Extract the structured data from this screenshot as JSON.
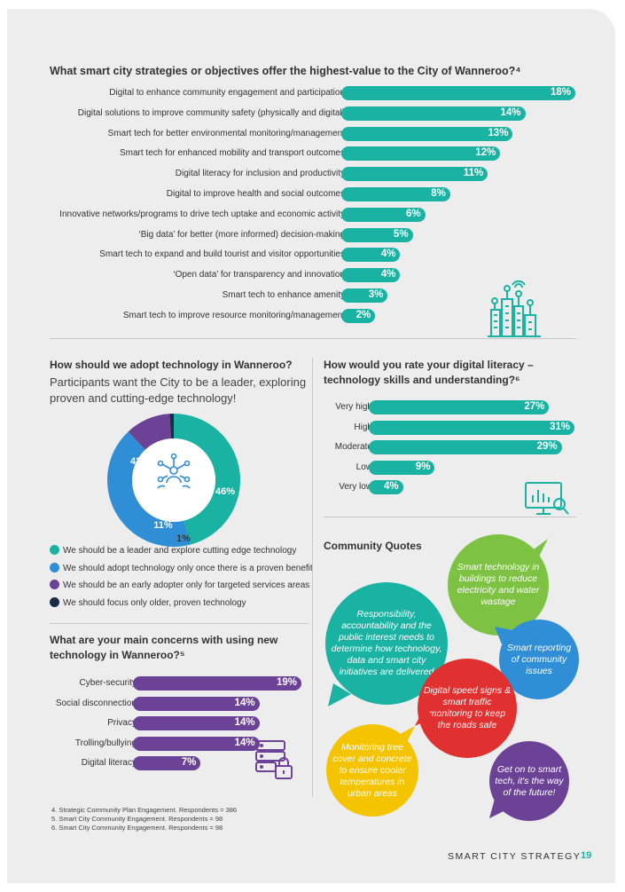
{
  "strategies": {
    "title": "What smart city strategies or objectives offer the highest-value to the City of Wanneroo?⁴",
    "chart_data": {
      "type": "bar",
      "categories": [
        "Digital to enhance community engagement and participation",
        "Digital solutions to improve community safety (physically and digital)",
        "Smart tech for better environmental monitoring/management",
        "Smart tech for enhanced mobility and transport outcomes",
        "Digital literacy for inclusion and productivity",
        "Digital to improve health and social outcomes",
        "Innovative networks/programs to drive tech uptake and economic activity",
        "‘Big data’ for better (more informed) decision-making",
        "Smart tech to expand and build tourist and visitor opportunities",
        "‘Open data’ for transparency and innovation",
        "Smart tech to enhance amenity",
        "Smart tech to improve resource monitoring/management"
      ],
      "values": [
        18,
        14,
        13,
        12,
        11,
        8,
        6,
        5,
        4,
        4,
        3,
        2
      ],
      "value_labels": [
        "18%",
        "14%",
        "13%",
        "12%",
        "11%",
        "8%",
        "6%",
        "5%",
        "4%",
        "4%",
        "3%",
        "2%"
      ],
      "xlim": [
        0,
        18
      ],
      "color": "#1ab3a3"
    }
  },
  "adopt": {
    "title": "How should we adopt technology in Wanneroo?",
    "lead": "Participants want the City to be a leader, exploring proven and cutting-edge technology!",
    "chart_data": {
      "type": "pie",
      "labels": [
        "We should be a leader and explore cutting edge technology",
        "We should adopt technology only once there is a proven benefit",
        "We should be an early adopter only for targeted services areas",
        "We should focus only older, proven technology"
      ],
      "values": [
        46,
        42,
        11,
        1
      ],
      "value_labels": [
        "46%",
        "42%",
        "11%",
        "1%"
      ],
      "colors": [
        "#1ab3a3",
        "#2f8ed6",
        "#6b4296",
        "#1b2b45"
      ]
    }
  },
  "concerns": {
    "title": "What are your main concerns with using new technology in Wanneroo?⁵",
    "chart_data": {
      "type": "bar",
      "categories": [
        "Cyber-security",
        "Social disconnection",
        "Privacy",
        "Trolling/bullying",
        "Digital literacy"
      ],
      "values": [
        19,
        14,
        14,
        14,
        7
      ],
      "value_labels": [
        "19%",
        "14%",
        "14%",
        "14%",
        "7%"
      ],
      "xlim": [
        0,
        19
      ],
      "color": "#6b4296"
    }
  },
  "literacy": {
    "title": "How would you rate your digital literacy – technology skills and understanding?⁶",
    "chart_data": {
      "type": "bar",
      "categories": [
        "Very high",
        "High",
        "Moderate",
        "Low",
        "Very low"
      ],
      "values": [
        27,
        31,
        29,
        9,
        4
      ],
      "value_labels": [
        "27%",
        "31%",
        "29%",
        "9%",
        "4%"
      ],
      "xlim": [
        0,
        31
      ],
      "color": "#1ab3a3"
    }
  },
  "quotes": {
    "title": "Community Quotes",
    "items": [
      {
        "text": "Smart technology in buildings to reduce electricity and water wastage",
        "color": "#7dc242"
      },
      {
        "text": "Responsibility, accountability and the public interest needs to determine how technology, data and smart city initiatives are delivered",
        "color": "#1ab3a3"
      },
      {
        "text": "Smart reporting of community issues",
        "color": "#2f8ed6"
      },
      {
        "text": "Digital speed signs & smart traffic monitoring to keep the roads safe",
        "color": "#e03030"
      },
      {
        "text": "Monitoring tree cover and concrete to ensure cooler temperatures in urban areas",
        "color": "#f5c400"
      },
      {
        "text": "Get on to smart tech, it's the way of the future!",
        "color": "#6b4296"
      }
    ]
  },
  "footnotes": [
    "4.   Strategic Community Plan Engagement. Respondents = 386",
    "5.   Smart City Community Engagement. Respondents = 98",
    "6.   Smart City Community Engagement. Respondents = 98"
  ],
  "footer": {
    "title": "SMART CITY STRATEGY",
    "page": "19"
  },
  "icons": [
    "city-buildings-icon",
    "network-people-icon",
    "data-monitor-icon",
    "server-lock-icon"
  ]
}
